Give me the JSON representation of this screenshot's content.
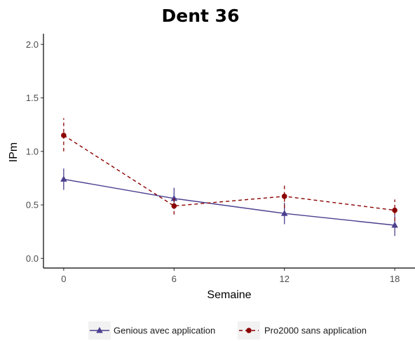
{
  "chart_data": {
    "type": "line",
    "title": "Dent 36",
    "xlabel": "Semaine",
    "ylabel": "IPm",
    "x": [
      0,
      6,
      12,
      18
    ],
    "xticks": [
      "0",
      "6",
      "12",
      "18"
    ],
    "xlim": [
      -1.1,
      19.1
    ],
    "ylim": [
      -0.09,
      2.1
    ],
    "yticks": [
      "0.0",
      "0.5",
      "1.0",
      "1.5",
      "2.0"
    ],
    "grid": false,
    "legend_position": "bottom",
    "series": [
      {
        "name": "Genious avec application",
        "color": "#4b3f8f",
        "marker": "triangle",
        "line": "solid",
        "values": [
          0.74,
          0.56,
          0.42,
          0.31
        ],
        "error_low": [
          0.64,
          0.46,
          0.32,
          0.21
        ],
        "error_high": [
          0.84,
          0.66,
          0.52,
          0.41
        ]
      },
      {
        "name": "Pro2000 sans application",
        "color": "#8b0000",
        "marker": "circle",
        "line": "dashed",
        "values": [
          1.15,
          0.49,
          0.58,
          0.45
        ],
        "error_low": [
          1.0,
          0.41,
          0.47,
          0.35
        ],
        "error_high": [
          1.31,
          0.57,
          0.7,
          0.55
        ]
      }
    ]
  }
}
